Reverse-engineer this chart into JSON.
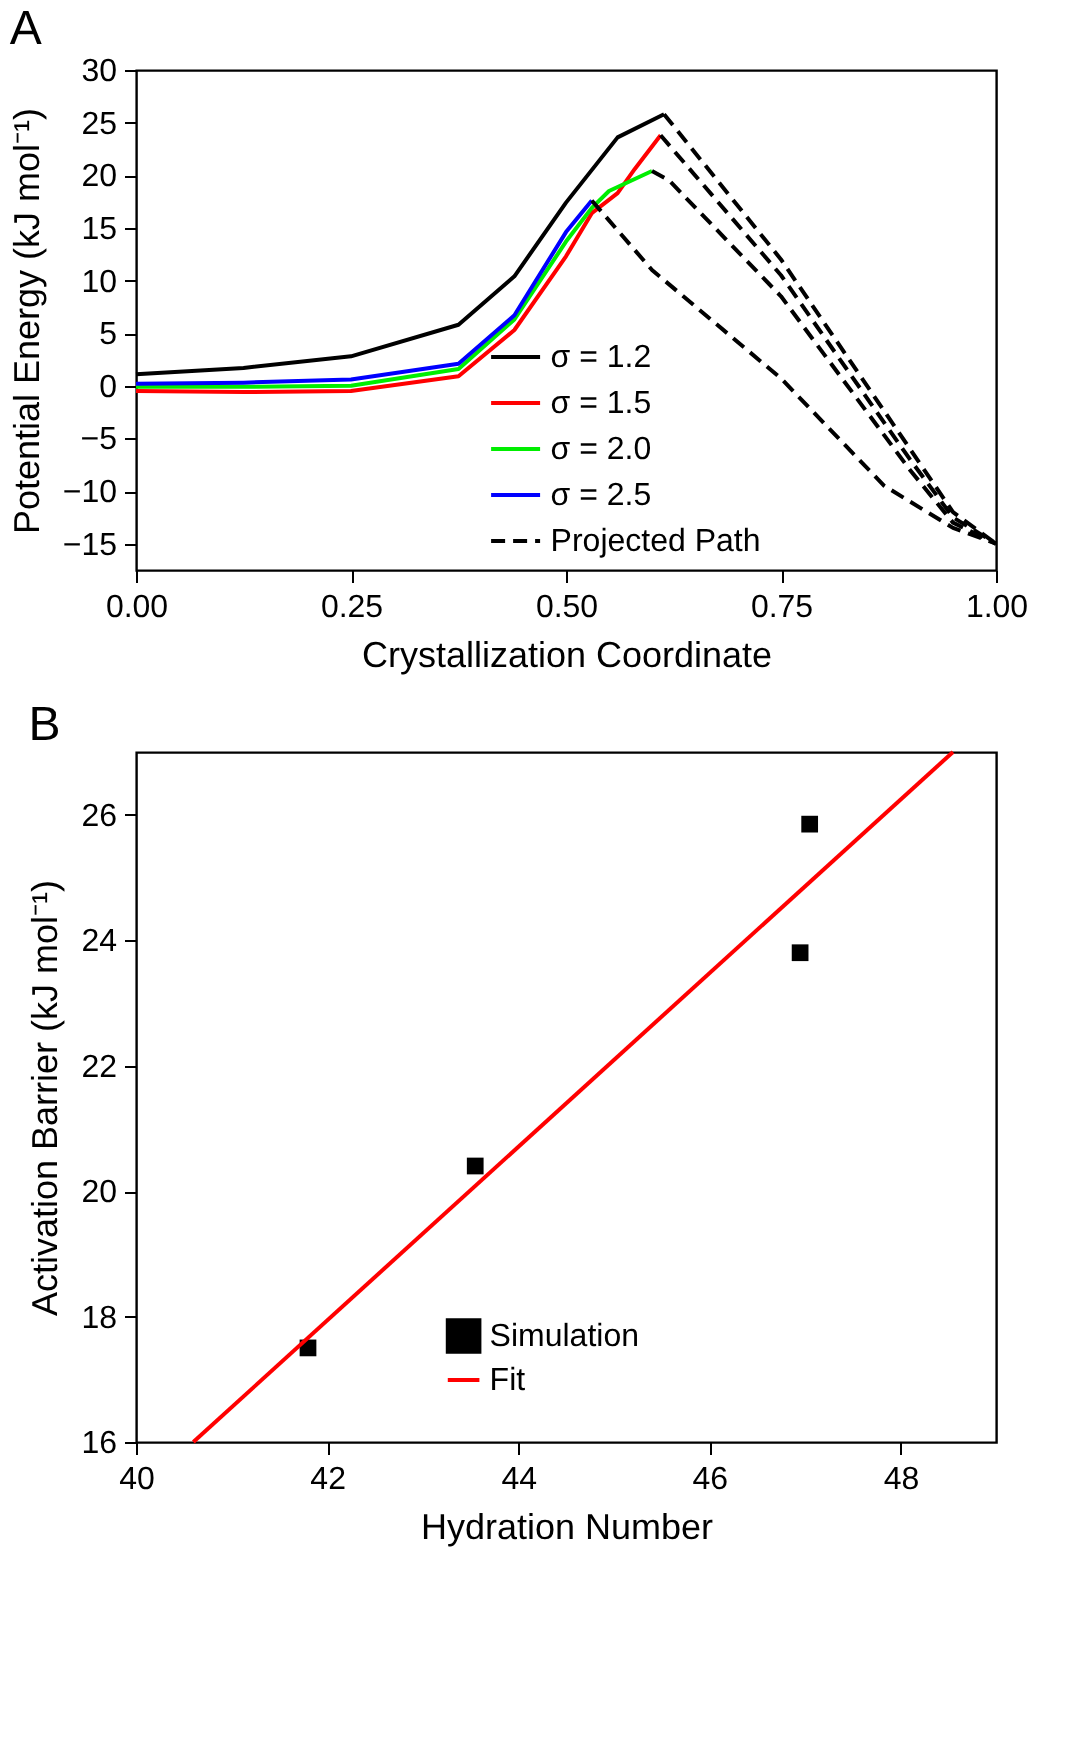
{
  "chart_data": [
    {
      "type": "line",
      "title": "A",
      "xlabel": "Crystallization Coordinate",
      "ylabel": "Potential Energy (kJ mol⁻¹)",
      "xlim": [
        0,
        1
      ],
      "ylim": [
        -17.5,
        30
      ],
      "xticks": [
        {
          "value": 0,
          "label": "0.00"
        },
        {
          "value": 0.25,
          "label": "0.25"
        },
        {
          "value": 0.5,
          "label": "0.50"
        },
        {
          "value": 0.75,
          "label": "0.75"
        },
        {
          "value": 1,
          "label": "1.00"
        }
      ],
      "yticks": [
        -15,
        -10,
        -5,
        0,
        5,
        10,
        15,
        20,
        25,
        30
      ],
      "legend": "bottom right",
      "series": [
        {
          "name": "σ = 1.2",
          "color": "#000000",
          "line_style": "solid",
          "x": [
            0,
            0.125,
            0.25,
            0.375,
            0.44,
            0.5,
            0.56,
            0.614
          ],
          "values": [
            1.1,
            1.7,
            2.8,
            5.8,
            10.4,
            17.4,
            23.6,
            25.8
          ]
        },
        {
          "name": "σ = 1.5",
          "color": "#ff0000",
          "line_style": "solid",
          "x": [
            0,
            0.125,
            0.25,
            0.375,
            0.44,
            0.5,
            0.53,
            0.56,
            0.58,
            0.61
          ],
          "values": [
            -0.5,
            -0.6,
            -0.5,
            0.9,
            5.3,
            12.3,
            16.4,
            18.3,
            20.6,
            23.8
          ]
        },
        {
          "name": "σ = 2.0",
          "color": "#00ee00",
          "line_style": "solid",
          "x": [
            0,
            0.125,
            0.25,
            0.375,
            0.44,
            0.5,
            0.53,
            0.55,
            0.6
          ],
          "values": [
            -0.1,
            -0.1,
            0,
            1.6,
            6.3,
            13.7,
            16.9,
            18.5,
            20.4
          ]
        },
        {
          "name": "σ = 2.5",
          "color": "#0000ff",
          "line_style": "solid",
          "x": [
            0,
            0.125,
            0.25,
            0.375,
            0.44,
            0.5,
            0.53
          ],
          "values": [
            0.2,
            0.3,
            0.6,
            2.1,
            6.7,
            14.6,
            17.6
          ]
        },
        {
          "name": "Projected Path",
          "color": "#000000",
          "line_style": "dashed",
          "x": [
            0.614,
            0.75,
            0.9,
            0.95,
            1
          ],
          "values": [
            25.8,
            12,
            -6,
            -12,
            -15
          ]
        },
        {
          "color": "#000000",
          "line_style": "dashed",
          "x": [
            0.61,
            0.75,
            0.9,
            0.95,
            1
          ],
          "values": [
            23.8,
            10.5,
            -7,
            -12.5,
            -15
          ]
        },
        {
          "color": "#000000",
          "line_style": "dashed",
          "x": [
            0.6,
            0.62,
            0.75,
            0.9,
            0.95,
            1
          ],
          "values": [
            20.4,
            19.5,
            8.5,
            -8,
            -13,
            -15
          ]
        },
        {
          "color": "#000000",
          "line_style": "dashed",
          "x": [
            0.53,
            0.6,
            0.75,
            0.87,
            0.95,
            1
          ],
          "values": [
            17.6,
            11,
            0.7,
            -9.5,
            -13.5,
            -15
          ]
        }
      ]
    },
    {
      "type": "scatter",
      "title": "B",
      "xlabel": "Hydration Number",
      "ylabel": "Activation Barrier (kJ mol⁻¹)",
      "xlim": [
        40,
        49
      ],
      "ylim": [
        16,
        27
      ],
      "xticks": [
        40,
        42,
        44,
        46,
        48
      ],
      "yticks": [
        16,
        18,
        20,
        22,
        24,
        26
      ],
      "legend": "bottom",
      "series": [
        {
          "name": "Simulation",
          "marker": "square",
          "color": "#000000",
          "x": [
            41.8,
            43.55,
            46.95,
            47.05
          ],
          "values": [
            17.5,
            20.4,
            23.8,
            25.85
          ]
        },
        {
          "name": "Fit",
          "type": "line",
          "marker": "none",
          "color": "#ff0000",
          "line_style": "solid",
          "x": [
            40.6,
            48.55
          ],
          "values": [
            16,
            27
          ]
        }
      ]
    }
  ]
}
